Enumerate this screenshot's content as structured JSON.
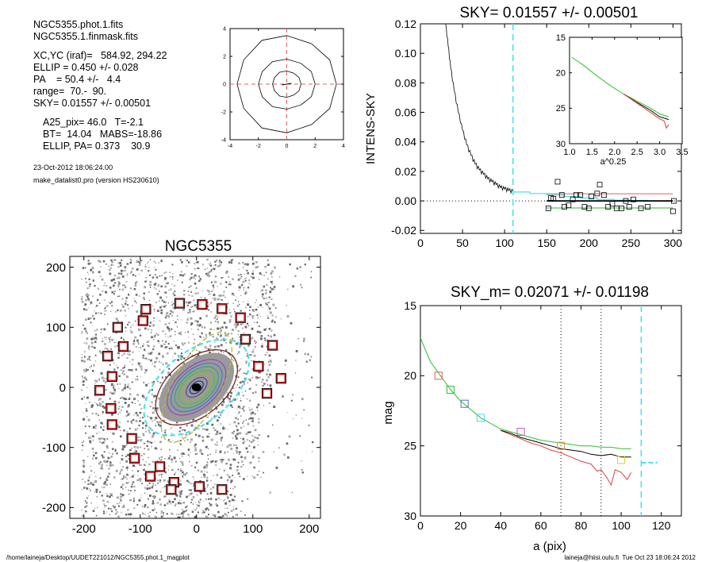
{
  "info": {
    "file1": "NGC5355.phot.1.fits",
    "file2": "NGC5355.1.finmask.fits",
    "lines": [
      "XC,YC (iraf)=   584.92, 294.22",
      "ELLIP = 0.450 +/- 0.028",
      "PA    = 50.4 +/-   4.4",
      "range=  70.-  90.",
      "SKY= 0.01557 +/- 0.00501"
    ],
    "lines2": [
      "A25_pix= 46.0   T=-2.1",
      "BT=  14.04   MABS=-18.86",
      "ELLIP, PA= 0.373    30.9"
    ],
    "date": "23-Oct-2012 18:06:24.00",
    "program": "make_datalist0.pro (version HS230610)"
  },
  "footer": {
    "left": "/home/laineja/Desktop/UUDET221012/NGC5355.phot.1_magplot",
    "right": "laineja@hiisi.oulu.fi  Tue Oct 23 18:06:24 2012"
  },
  "chart_data": [
    {
      "id": "contour_thumb",
      "type": "line",
      "title": "",
      "xlim": [
        -4,
        4
      ],
      "ylim": [
        -4,
        4
      ],
      "xticks": [
        -4,
        -2,
        0,
        2,
        4
      ],
      "yticks": [
        -4,
        -2,
        0,
        2,
        4
      ],
      "contours": [
        {
          "a": 3.5,
          "b": 3.5
        },
        {
          "a": 2.0,
          "b": 1.8
        },
        {
          "a": 1.0,
          "b": 0.95
        }
      ],
      "crosshair": {
        "x": 0,
        "y": 0,
        "color": "#e06060"
      }
    },
    {
      "id": "sky_profile",
      "type": "line",
      "title": "SKY= 0.01557 +/- 0.00501",
      "xlabel": "",
      "ylabel": "INTENS-SKY",
      "xlim": [
        0,
        310
      ],
      "ylim": [
        -0.022,
        0.12
      ],
      "xticks": [
        0,
        50,
        100,
        150,
        200,
        250,
        300
      ],
      "yticks": [
        -0.02,
        0.0,
        0.02,
        0.04,
        0.06,
        0.08,
        0.1,
        0.12
      ],
      "ytick_labels": [
        "-0.02",
        "0.00",
        "0.02",
        "0.04",
        "0.06",
        "0.08",
        "0.10",
        "0.12"
      ],
      "profile": [
        [
          30,
          0.12
        ],
        [
          33,
          0.105
        ],
        [
          36,
          0.09
        ],
        [
          40,
          0.075
        ],
        [
          45,
          0.06
        ],
        [
          50,
          0.048
        ],
        [
          55,
          0.038
        ],
        [
          60,
          0.031
        ],
        [
          65,
          0.025
        ],
        [
          70,
          0.021
        ],
        [
          75,
          0.018
        ],
        [
          80,
          0.015
        ],
        [
          85,
          0.013
        ],
        [
          90,
          0.011
        ],
        [
          95,
          0.009
        ],
        [
          100,
          0.008
        ],
        [
          105,
          0.007
        ],
        [
          110,
          0.006
        ]
      ],
      "cyan_line": {
        "x": 110,
        "color": "#40e0f0"
      },
      "cyan_steps": [
        [
          110,
          0.006
        ],
        [
          130,
          0.005
        ],
        [
          150,
          0.004
        ],
        [
          170,
          0.003
        ],
        [
          190,
          0.002
        ],
        [
          210,
          0.001
        ],
        [
          230,
          0.0005
        ],
        [
          250,
          0.0003
        ],
        [
          270,
          -0.0003
        ]
      ],
      "sky_points": [
        [
          152,
          -0.005
        ],
        [
          155,
          0.002
        ],
        [
          158,
          0.0015
        ],
        [
          163,
          0.013
        ],
        [
          168,
          0.004
        ],
        [
          171,
          -0.004
        ],
        [
          176,
          -0.003
        ],
        [
          181,
          0.001
        ],
        [
          185,
          0.004
        ],
        [
          190,
          0.004
        ],
        [
          195,
          -0.004
        ],
        [
          200,
          -0.005
        ],
        [
          203,
          0.003
        ],
        [
          210,
          0.005
        ],
        [
          213,
          0.011
        ],
        [
          218,
          0.004
        ],
        [
          223,
          -0.004
        ],
        [
          228,
          -0.002
        ],
        [
          233,
          -0.005
        ],
        [
          239,
          -0.005
        ],
        [
          244,
          0.0
        ],
        [
          248,
          -0.004
        ],
        [
          253,
          0.001
        ],
        [
          262,
          -0.005
        ],
        [
          270,
          -0.004
        ],
        [
          300,
          -0.007
        ],
        [
          301,
          0.0
        ]
      ],
      "levels": [
        {
          "value": 0.0048,
          "color": "#e06060",
          "x": [
            150,
            300
          ]
        },
        {
          "value": 0.0,
          "color": "#000000",
          "x": [
            150,
            300
          ]
        },
        {
          "value": -0.0048,
          "color": "#30b030",
          "x": [
            150,
            300
          ]
        }
      ],
      "inset": {
        "xlabel": "a^0.25",
        "xlim": [
          1.0,
          3.5
        ],
        "ylim": [
          15,
          30
        ],
        "xticks": [
          1.0,
          1.5,
          2.0,
          2.5,
          3.0,
          3.5
        ],
        "xtick_labels": [
          "1.0",
          "1.5",
          "2.0",
          "2.5",
          "3.0",
          "3.5"
        ],
        "yticks": [
          15,
          20,
          25,
          30
        ],
        "green": [
          [
            1.05,
            17.8
          ],
          [
            1.3,
            18.9
          ],
          [
            1.6,
            20.4
          ],
          [
            1.9,
            21.8
          ],
          [
            2.2,
            23.0
          ],
          [
            2.5,
            24.0
          ],
          [
            2.8,
            25.0
          ],
          [
            3.0,
            25.8
          ],
          [
            3.2,
            26.2
          ]
        ],
        "black": [
          [
            2.2,
            23.0
          ],
          [
            2.5,
            24.2
          ],
          [
            2.8,
            25.3
          ],
          [
            3.0,
            26.2
          ],
          [
            3.2,
            26.6
          ]
        ],
        "red": [
          [
            2.2,
            23.0
          ],
          [
            2.5,
            24.3
          ],
          [
            2.8,
            25.6
          ],
          [
            3.0,
            26.5
          ],
          [
            3.1,
            26.8
          ],
          [
            3.15,
            27.8
          ],
          [
            3.2,
            27.3
          ]
        ]
      }
    },
    {
      "id": "galaxy_image",
      "type": "scatter",
      "title": "NGC5355",
      "xlim": [
        -225,
        220
      ],
      "ylim": [
        -218,
        218
      ],
      "xticks": [
        -200,
        -100,
        0,
        100,
        200
      ],
      "yticks": [
        -200,
        -100,
        0,
        100,
        200
      ],
      "ellipses": [
        {
          "a": 110,
          "b": 62,
          "pa": 40,
          "color": "#40e0f0",
          "dashed": true
        },
        {
          "a": 85,
          "b": 50,
          "pa": 40,
          "color": "#7a2020",
          "dashed": false
        },
        {
          "a": 108,
          "b": 42,
          "pa": 62,
          "color": "#b8b830",
          "dashed": true
        }
      ],
      "iso_colors": [
        "#9a4ab8",
        "#4a78d0",
        "#38a878",
        "#50c050",
        "#9ab048",
        "#5a4aa8",
        "#203a80"
      ],
      "sky_boxes": [
        [
          -30,
          140
        ],
        [
          10,
          138
        ],
        [
          45,
          131
        ],
        [
          -90,
          130
        ],
        [
          78,
          116
        ],
        [
          -95,
          111
        ],
        [
          -140,
          100
        ],
        [
          87,
          80
        ],
        [
          135,
          70
        ],
        [
          -130,
          68
        ],
        [
          -158,
          52
        ],
        [
          110,
          35
        ],
        [
          -150,
          18
        ],
        [
          150,
          15
        ],
        [
          -172,
          -5
        ],
        [
          125,
          -10
        ],
        [
          -152,
          -35
        ],
        [
          -150,
          -62
        ],
        [
          -115,
          -85
        ],
        [
          -110,
          -118
        ],
        [
          -65,
          -132
        ],
        [
          -82,
          -148
        ],
        [
          -40,
          -158
        ],
        [
          -45,
          -170
        ],
        [
          5,
          -165
        ],
        [
          45,
          -170
        ]
      ]
    },
    {
      "id": "mag_profile",
      "type": "line",
      "title": "SKY_m=  0.02071 +/- 0.01198",
      "xlabel": "a (pix)",
      "ylabel": "mag",
      "xlim": [
        0,
        130
      ],
      "ylim": [
        15,
        30
      ],
      "xticks": [
        0,
        20,
        40,
        60,
        80,
        100,
        120
      ],
      "yticks": [
        15,
        20,
        25,
        30
      ],
      "green": [
        [
          0,
          17.3
        ],
        [
          2,
          18.0
        ],
        [
          5,
          19.0
        ],
        [
          10,
          20.0
        ],
        [
          15,
          21.0
        ],
        [
          20,
          21.8
        ],
        [
          25,
          22.4
        ],
        [
          30,
          23.0
        ],
        [
          35,
          23.4
        ],
        [
          40,
          23.8
        ],
        [
          45,
          24.0
        ],
        [
          50,
          24.2
        ],
        [
          55,
          24.4
        ],
        [
          60,
          24.6
        ],
        [
          65,
          24.7
        ],
        [
          70,
          24.8
        ],
        [
          75,
          24.9
        ],
        [
          80,
          25.0
        ],
        [
          85,
          25.0
        ],
        [
          90,
          25.1
        ],
        [
          95,
          25.1
        ],
        [
          100,
          25.2
        ],
        [
          105,
          25.2
        ]
      ],
      "black": [
        [
          40,
          23.9
        ],
        [
          45,
          24.1
        ],
        [
          50,
          24.4
        ],
        [
          55,
          24.6
        ],
        [
          60,
          24.8
        ],
        [
          65,
          25.0
        ],
        [
          70,
          25.2
        ],
        [
          75,
          25.3
        ],
        [
          80,
          25.4
        ],
        [
          85,
          25.6
        ],
        [
          90,
          25.7
        ],
        [
          95,
          25.6
        ],
        [
          100,
          25.8
        ],
        [
          105,
          25.8
        ]
      ],
      "red": [
        [
          40,
          23.9
        ],
        [
          45,
          24.2
        ],
        [
          50,
          24.5
        ],
        [
          55,
          24.8
        ],
        [
          60,
          25.0
        ],
        [
          65,
          25.3
        ],
        [
          70,
          25.5
        ],
        [
          75,
          25.8
        ],
        [
          80,
          26.1
        ],
        [
          85,
          26.3
        ],
        [
          88,
          26.8
        ],
        [
          90,
          26.7
        ],
        [
          93,
          27.3
        ],
        [
          95,
          27.8
        ],
        [
          97,
          26.7
        ],
        [
          100,
          26.9
        ],
        [
          103,
          27.4
        ],
        [
          105,
          26.9
        ]
      ],
      "vlines_dotted": [
        70,
        90
      ],
      "cyan_line": {
        "x": 110,
        "color": "#40e0f0"
      },
      "cyan_sky": {
        "value": 26.2,
        "x": [
          110,
          118
        ]
      },
      "markers": [
        {
          "x": 9,
          "y": 20.0,
          "color": "#e06060"
        },
        {
          "x": 15,
          "y": 21.0,
          "color": "#30c030"
        },
        {
          "x": 22,
          "y": 22.0,
          "color": "#4a70d0"
        },
        {
          "x": 30,
          "y": 23.0,
          "color": "#40e0f0"
        },
        {
          "x": 50,
          "y": 24.0,
          "color": "#d050d0"
        },
        {
          "x": 70,
          "y": 25.0,
          "color": "#e09040"
        },
        {
          "x": 100,
          "y": 26.0,
          "color": "#d0d040"
        }
      ]
    }
  ]
}
